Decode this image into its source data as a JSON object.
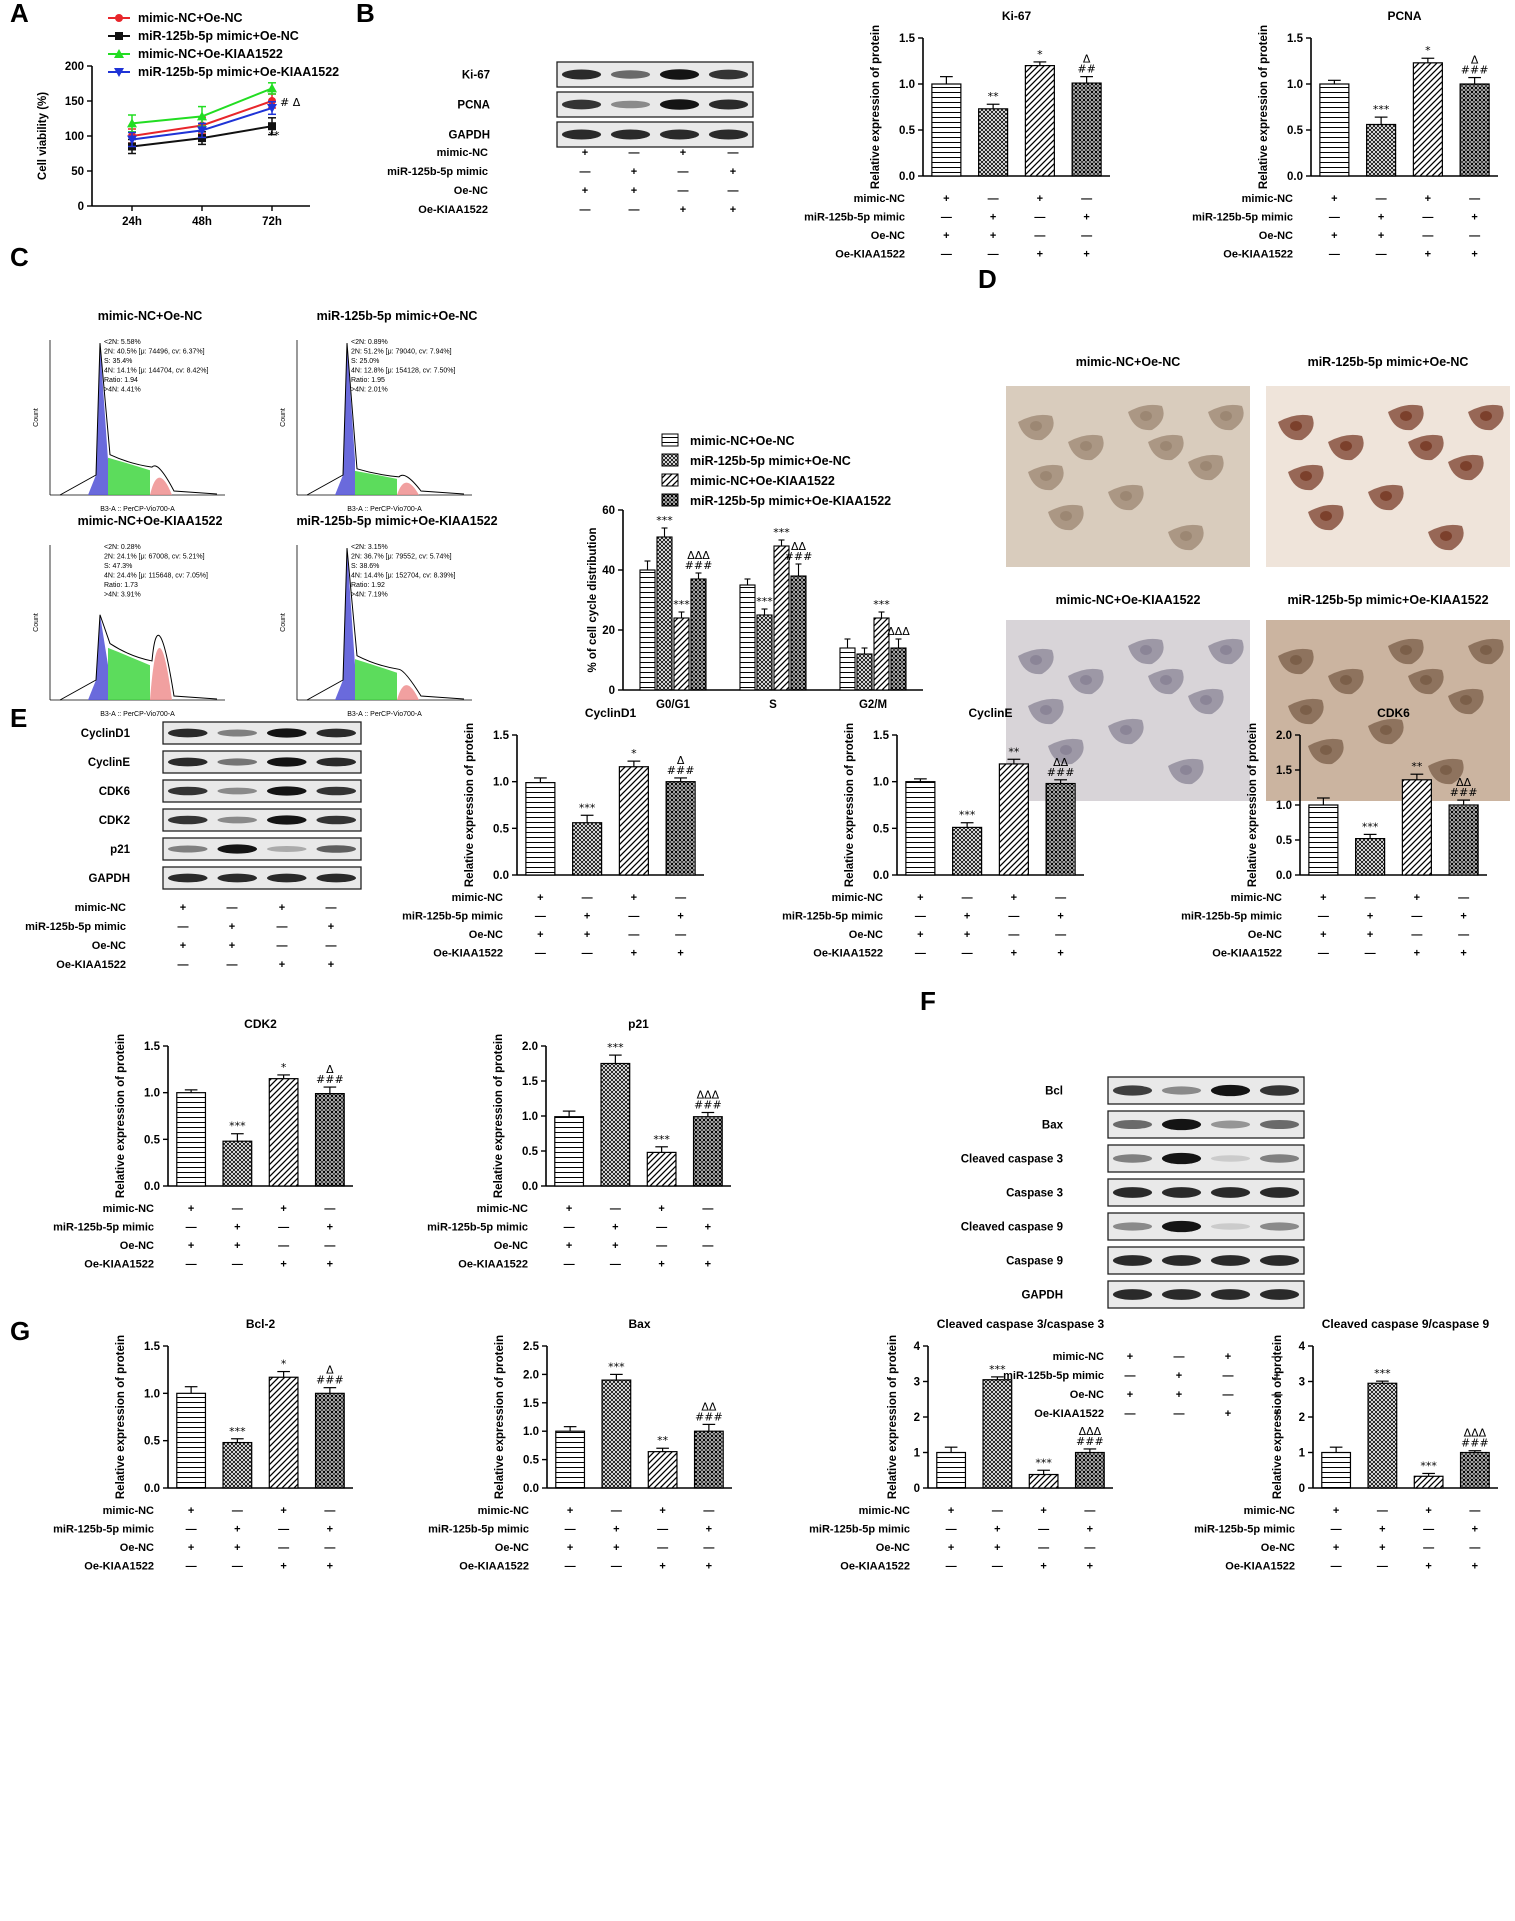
{
  "panel_letters": [
    "A",
    "B",
    "C",
    "D",
    "E",
    "F",
    "G"
  ],
  "symbols": {
    "plus": "+",
    "minus": "—"
  },
  "colors": {
    "red": "#e8262b",
    "black": "#111111",
    "green": "#22dd22",
    "blue": "#1f33d6",
    "flow_blue": "#5a5ad8",
    "flow_green": "#3fd63f",
    "flow_red": "#ee8f8f"
  },
  "condition_rows": [
    "mimic-NC",
    "miR-125b-5p mimic",
    "Oe-NC",
    "Oe-KIAA1522"
  ],
  "condition_signs": [
    [
      "+",
      "—",
      "+",
      "—"
    ],
    [
      "—",
      "+",
      "—",
      "+"
    ],
    [
      "+",
      "+",
      "—",
      "—"
    ],
    [
      "—",
      "—",
      "+",
      "+"
    ]
  ],
  "chart_data": [
    {
      "id": "A",
      "type": "line",
      "x": [
        "24h",
        "48h",
        "72h"
      ],
      "ylabel": "Cell viability (%)",
      "ylim": [
        0,
        200
      ],
      "yticks": [
        0,
        50,
        100,
        150,
        200
      ],
      "series": [
        {
          "name": "mimic-NC+Oe-NC",
          "color": "#e8262b",
          "marker": "circle",
          "values": [
            100,
            115,
            150
          ],
          "err": [
            10,
            12,
            10
          ]
        },
        {
          "name": "miR-125b-5p mimic+Oe-NC",
          "color": "#111111",
          "marker": "square",
          "values": [
            85,
            97,
            114
          ],
          "err": [
            10,
            9,
            12
          ]
        },
        {
          "name": "mimic-NC+Oe-KIAA1522",
          "color": "#22dd22",
          "marker": "triangle",
          "values": [
            118,
            128,
            168
          ],
          "err": [
            12,
            14,
            8
          ]
        },
        {
          "name": "miR-125b-5p mimic+Oe-KIAA1522",
          "color": "#1f33d6",
          "marker": "triangle-down",
          "values": [
            95,
            108,
            140
          ],
          "err": [
            10,
            10,
            9
          ]
        }
      ],
      "annotations": [
        {
          "x": "72h",
          "text": "# Δ"
        },
        {
          "x": "72h",
          "text": "**"
        }
      ]
    },
    {
      "id": "B1",
      "type": "bar",
      "title": "Ki-67",
      "ylabel": "Relative expression of protein",
      "ylim": [
        0,
        1.5
      ],
      "yticks": [
        "0.0",
        "0.5",
        "1.0",
        "1.5"
      ],
      "values": [
        1.0,
        0.73,
        1.2,
        1.01
      ],
      "err": [
        0.08,
        0.05,
        0.04,
        0.07
      ],
      "sig": [
        [],
        [
          "**"
        ],
        [
          "*"
        ],
        [
          "Δ",
          "##"
        ]
      ]
    },
    {
      "id": "B2",
      "type": "bar",
      "title": "PCNA",
      "ylabel": "Relative expression of protein",
      "ylim": [
        0,
        1.5
      ],
      "yticks": [
        "0.0",
        "0.5",
        "1.0",
        "1.5"
      ],
      "values": [
        1.0,
        0.56,
        1.23,
        1.0
      ],
      "err": [
        0.04,
        0.08,
        0.05,
        0.07
      ],
      "sig": [
        [],
        [
          "***"
        ],
        [
          "*"
        ],
        [
          "Δ",
          "###"
        ]
      ]
    },
    {
      "id": "C",
      "type": "bar",
      "categories": [
        "G0/G1",
        "S",
        "G2/M"
      ],
      "ylabel": "% of cell cycle distribution",
      "ylim": [
        0,
        60
      ],
      "yticks": [
        0,
        20,
        40,
        60
      ],
      "series": [
        {
          "name": "mimic-NC+Oe-NC",
          "values": [
            40,
            35,
            14
          ],
          "err": [
            3,
            2,
            3
          ],
          "sig": [
            [],
            [],
            []
          ]
        },
        {
          "name": "miR-125b-5p mimic+Oe-NC",
          "values": [
            51,
            25,
            12
          ],
          "err": [
            3,
            2,
            2
          ],
          "sig": [
            [
              "***"
            ],
            [
              "***"
            ],
            []
          ]
        },
        {
          "name": "mimic-NC+Oe-KIAA1522",
          "values": [
            24,
            48,
            24
          ],
          "err": [
            2,
            2,
            2
          ],
          "sig": [
            [
              "***"
            ],
            [
              "***"
            ],
            [
              "***"
            ]
          ]
        },
        {
          "name": "miR-125b-5p mimic+Oe-KIAA1522",
          "values": [
            37,
            38,
            14
          ],
          "err": [
            2,
            4,
            3
          ],
          "sig": [
            [
              "ΔΔΔ",
              "###"
            ],
            [
              "ΔΔ",
              "###"
            ],
            [
              "ΔΔΔ"
            ]
          ]
        }
      ]
    },
    {
      "id": "E1",
      "type": "bar",
      "title": "CyclinD1",
      "ylabel": "Relative expression of protein",
      "ylim": [
        0,
        1.5
      ],
      "yticks": [
        "0.0",
        "0.5",
        "1.0",
        "1.5"
      ],
      "values": [
        0.99,
        0.56,
        1.16,
        1.0
      ],
      "err": [
        0.05,
        0.08,
        0.06,
        0.04
      ],
      "sig": [
        [],
        [
          "***"
        ],
        [
          "*"
        ],
        [
          "Δ",
          "###"
        ]
      ]
    },
    {
      "id": "E2",
      "type": "bar",
      "title": "CyclinE",
      "ylabel": "Relative expression of protein",
      "ylim": [
        0,
        1.5
      ],
      "yticks": [
        "0.0",
        "0.5",
        "1.0",
        "1.5"
      ],
      "values": [
        1.0,
        0.51,
        1.19,
        0.98
      ],
      "err": [
        0.03,
        0.05,
        0.05,
        0.04
      ],
      "sig": [
        [],
        [
          "***"
        ],
        [
          "**"
        ],
        [
          "ΔΔ",
          "###"
        ]
      ]
    },
    {
      "id": "E3",
      "type": "bar",
      "title": "CDK6",
      "ylabel": "Relative expression of protein",
      "ylim": [
        0,
        2.0
      ],
      "yticks": [
        "0.0",
        "0.5",
        "1.0",
        "1.5",
        "2.0"
      ],
      "values": [
        1.0,
        0.52,
        1.36,
        1.0
      ],
      "err": [
        0.1,
        0.06,
        0.08,
        0.07
      ],
      "sig": [
        [],
        [
          "***"
        ],
        [
          "**"
        ],
        [
          "ΔΔ",
          "###"
        ]
      ]
    },
    {
      "id": "E4",
      "type": "bar",
      "title": "CDK2",
      "ylabel": "Relative expression of protein",
      "ylim": [
        0,
        1.5
      ],
      "yticks": [
        "0.0",
        "0.5",
        "1.0",
        "1.5"
      ],
      "values": [
        1.0,
        0.48,
        1.15,
        0.99
      ],
      "err": [
        0.03,
        0.08,
        0.04,
        0.07
      ],
      "sig": [
        [],
        [
          "***"
        ],
        [
          "*"
        ],
        [
          "Δ",
          "###"
        ]
      ]
    },
    {
      "id": "E5",
      "type": "bar",
      "title": "p21",
      "ylabel": "Relative expression of protein",
      "ylim": [
        0,
        2.0
      ],
      "yticks": [
        "0.0",
        "0.5",
        "1.0",
        "1.5",
        "2.0"
      ],
      "values": [
        0.99,
        1.75,
        0.48,
        0.99
      ],
      "err": [
        0.08,
        0.12,
        0.08,
        0.06
      ],
      "sig": [
        [],
        [
          "***"
        ],
        [
          "***"
        ],
        [
          "ΔΔΔ",
          "###"
        ]
      ]
    },
    {
      "id": "G1",
      "type": "bar",
      "title": "Bcl-2",
      "ylabel": "Relative expression of protein",
      "ylim": [
        0,
        1.5
      ],
      "yticks": [
        "0.0",
        "0.5",
        "1.0",
        "1.5"
      ],
      "values": [
        1.0,
        0.48,
        1.17,
        1.0
      ],
      "err": [
        0.07,
        0.04,
        0.06,
        0.06
      ],
      "sig": [
        [],
        [
          "***"
        ],
        [
          "*"
        ],
        [
          "Δ",
          "###"
        ]
      ]
    },
    {
      "id": "G2",
      "type": "bar",
      "title": "Bax",
      "ylabel": "Relative expression of protein",
      "ylim": [
        0,
        2.5
      ],
      "yticks": [
        "0.0",
        "0.5",
        "1.0",
        "1.5",
        "2.0",
        "2.5"
      ],
      "values": [
        1.0,
        1.9,
        0.64,
        1.0
      ],
      "err": [
        0.08,
        0.1,
        0.06,
        0.12
      ],
      "sig": [
        [],
        [
          "***"
        ],
        [
          "**"
        ],
        [
          "ΔΔ",
          "###"
        ]
      ]
    },
    {
      "id": "G3",
      "type": "bar",
      "title": "Cleaved caspase 3/caspase 3",
      "ylabel": "Relative expression of protein",
      "ylim": [
        0,
        4
      ],
      "yticks": [
        "0",
        "1",
        "2",
        "3",
        "4"
      ],
      "values": [
        1.0,
        3.05,
        0.38,
        1.0
      ],
      "err": [
        0.15,
        0.08,
        0.12,
        0.1
      ],
      "sig": [
        [],
        [
          "***"
        ],
        [
          "***"
        ],
        [
          "ΔΔΔ",
          "###"
        ]
      ]
    },
    {
      "id": "G4",
      "type": "bar",
      "title": "Cleaved caspase 9/caspase 9",
      "ylabel": "Relative expression of protein",
      "ylim": [
        0,
        4
      ],
      "yticks": [
        "0",
        "1",
        "2",
        "3",
        "4"
      ],
      "values": [
        1.0,
        2.95,
        0.33,
        1.0
      ],
      "err": [
        0.15,
        0.06,
        0.08,
        0.05
      ],
      "sig": [
        [],
        [
          "***"
        ],
        [
          "***"
        ],
        [
          "ΔΔΔ",
          "###"
        ]
      ]
    }
  ],
  "western_blots": [
    {
      "id": "B",
      "labels": [
        "Ki-67",
        "PCNA",
        "GAPDH"
      ],
      "intensity": [
        [
          0.9,
          0.6,
          1.0,
          0.85
        ],
        [
          0.85,
          0.45,
          1.0,
          0.9
        ],
        [
          0.9,
          0.9,
          0.9,
          0.9
        ]
      ]
    },
    {
      "id": "E",
      "labels": [
        "CyclinD1",
        "CyclinE",
        "CDK6",
        "CDK2",
        "p21",
        "GAPDH"
      ],
      "intensity": [
        [
          0.9,
          0.5,
          1.0,
          0.9
        ],
        [
          0.9,
          0.55,
          1.0,
          0.9
        ],
        [
          0.85,
          0.45,
          1.0,
          0.85
        ],
        [
          0.85,
          0.45,
          1.0,
          0.85
        ],
        [
          0.5,
          1.0,
          0.3,
          0.65
        ],
        [
          0.9,
          0.9,
          0.9,
          0.9
        ]
      ]
    },
    {
      "id": "F",
      "labels": [
        "Bcl",
        "Bax",
        "Cleaved caspase 3",
        "Caspase 3",
        "Cleaved caspase 9",
        "Caspase 9",
        "GAPDH"
      ],
      "intensity": [
        [
          0.8,
          0.45,
          1.0,
          0.85
        ],
        [
          0.6,
          1.0,
          0.4,
          0.6
        ],
        [
          0.5,
          1.0,
          0.15,
          0.5
        ],
        [
          0.9,
          0.9,
          0.9,
          0.9
        ],
        [
          0.45,
          1.0,
          0.15,
          0.45
        ],
        [
          0.9,
          0.9,
          0.9,
          0.9
        ],
        [
          0.9,
          0.9,
          0.9,
          0.9
        ]
      ]
    }
  ],
  "flow_cytometry": {
    "panels": [
      {
        "title": "mimic-NC+Oe-NC",
        "stats": [
          "<2N: 5.58%",
          "2N: 40.5%  [μ: 74496, cv: 6.37%]",
          "S: 35.4%",
          "4N: 14.1%  [μ: 144704, cv: 8.42%]",
          "Ratio: 1.94",
          ">4N: 4.41%"
        ]
      },
      {
        "title": "miR-125b-5p mimic+Oe-NC",
        "stats": [
          "<2N: 0.89%",
          "2N: 51.2%  [μ: 79040, cv: 7.94%]",
          "S: 25.0%",
          "4N: 12.8%  [μ: 154128, cv: 7.50%]",
          "Ratio: 1.95",
          ">4N: 2.01%"
        ]
      },
      {
        "title": "mimic-NC+Oe-KIAA1522",
        "stats": [
          "<2N: 0.28%",
          "2N: 24.1%  [μ: 67008, cv: 5.21%]",
          "S: 47.3%",
          "4N: 24.4%  [μ: 115648, cv: 7.05%]",
          "Ratio: 1.73",
          ">4N: 3.91%"
        ]
      },
      {
        "title": "miR-125b-5p mimic+Oe-KIAA1522",
        "stats": [
          "<2N: 3.15%",
          "2N: 36.7%  [μ: 79552, cv: 5.74%]",
          "S: 38.6%",
          "4N: 14.4%  [μ: 152704, cv: 8.39%]",
          "Ratio: 1.92",
          ">4N: 7.19%"
        ]
      }
    ],
    "axis_label": "Count",
    "xaxis_label": "B3-A :: PerCP-Vio700-A"
  },
  "staining": {
    "titles": [
      "mimic-NC+Oe-NC",
      "miR-125b-5p mimic+Oe-NC",
      "mimic-NC+Oe-KIAA1522",
      "miR-125b-5p mimic+Oe-KIAA1522"
    ],
    "bg": [
      "#d9ccbd",
      "#efe4da",
      "#d8d4d8",
      "#cbb4a0"
    ],
    "cell": [
      "#9b8672",
      "#7a3e2a",
      "#8a8496",
      "#7a5e48"
    ]
  }
}
